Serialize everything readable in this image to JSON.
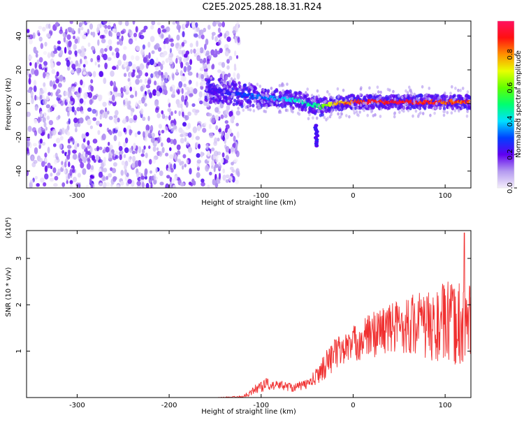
{
  "title": "C2E5.2025.288.18.31.R24",
  "chart_data": [
    {
      "type": "heatmap",
      "xlabel": "Height of straight line (km)",
      "ylabel": "Frequency (Hz)",
      "xlim": [
        -355,
        128
      ],
      "ylim": [
        -50,
        49
      ],
      "xticks": [
        -300,
        -200,
        -100,
        0,
        100
      ],
      "yticks": [
        -40,
        -20,
        0,
        20,
        40
      ],
      "colorbar": {
        "label": "Normalized spectral amplitude",
        "ticks": [
          "0.0",
          "0.2",
          "0.4",
          "0.6",
          "0.8"
        ],
        "tick_values": [
          0.0,
          0.2,
          0.4,
          0.6,
          0.8
        ],
        "range": [
          0,
          1
        ],
        "colormap": "rainbow (light violet to magenta-red)"
      },
      "trace": {
        "x": [
          -160,
          -140,
          -120,
          -100,
          -80,
          -60,
          -50,
          -40,
          -35,
          -30,
          -20,
          0,
          20,
          40,
          60,
          80,
          100,
          128
        ],
        "y": [
          8,
          7,
          5,
          4,
          3,
          2,
          0,
          -1,
          -2,
          -1,
          0,
          1,
          1,
          1,
          1,
          1,
          1,
          1
        ],
        "amplitude": [
          0.22,
          0.25,
          0.3,
          0.33,
          0.38,
          0.45,
          0.48,
          0.5,
          0.55,
          0.62,
          0.75,
          0.9,
          0.93,
          0.95,
          0.93,
          0.92,
          0.9,
          0.88
        ]
      },
      "blob": {
        "x": -40,
        "y_range": [
          -25,
          -12
        ],
        "amplitude": 0.2
      },
      "noise_region": {
        "x_range": [
          -355,
          -130
        ],
        "amplitude_range": [
          0.0,
          0.2
        ]
      }
    },
    {
      "type": "line",
      "xlabel": "Height of straight line (km)",
      "ylabel": "SNR (10 * v/v)",
      "scale_label": "(x10⁴)",
      "xlim": [
        -355,
        128
      ],
      "ylim": [
        0,
        3.6
      ],
      "xticks": [
        -300,
        -200,
        -100,
        0,
        100
      ],
      "yticks": [
        1,
        2,
        3
      ],
      "series": [
        {
          "color": "#f03030",
          "x": [
            -355,
            -300,
            -250,
            -200,
            -150,
            -120,
            -110,
            -105,
            -100,
            -95,
            -90,
            -85,
            -80,
            -75,
            -70,
            -65,
            -60,
            -55,
            -50,
            -45,
            -40,
            -35,
            -30,
            -25,
            -20,
            -15,
            -10,
            -5,
            0,
            10,
            20,
            30,
            40,
            50,
            60,
            70,
            80,
            90,
            95,
            100,
            105,
            110,
            115,
            120,
            128
          ],
          "y": [
            0.0,
            0.0,
            0.0,
            0.0,
            0.0,
            0.02,
            0.12,
            0.2,
            0.25,
            0.3,
            0.26,
            0.25,
            0.28,
            0.25,
            0.24,
            0.22,
            0.24,
            0.26,
            0.3,
            0.35,
            0.45,
            0.6,
            0.7,
            0.85,
            0.95,
            1.0,
            1.05,
            1.1,
            1.15,
            1.25,
            1.35,
            1.45,
            1.5,
            1.55,
            1.58,
            1.6,
            1.55,
            1.5,
            1.6,
            1.6,
            1.6,
            1.55,
            1.6,
            1.65,
            1.6
          ],
          "spread": [
            0.0,
            0.0,
            0.0,
            0.0,
            0.0,
            0.02,
            0.08,
            0.12,
            0.15,
            0.15,
            0.1,
            0.1,
            0.1,
            0.1,
            0.1,
            0.1,
            0.1,
            0.1,
            0.12,
            0.15,
            0.2,
            0.25,
            0.3,
            0.35,
            0.35,
            0.35,
            0.35,
            0.35,
            0.4,
            0.45,
            0.5,
            0.55,
            0.55,
            0.6,
            0.65,
            0.7,
            0.75,
            0.8,
            0.85,
            0.9,
            0.9,
            0.9,
            0.95,
            1.0,
            1.0
          ]
        }
      ],
      "peak": {
        "x": 121,
        "y": 3.55
      }
    }
  ]
}
